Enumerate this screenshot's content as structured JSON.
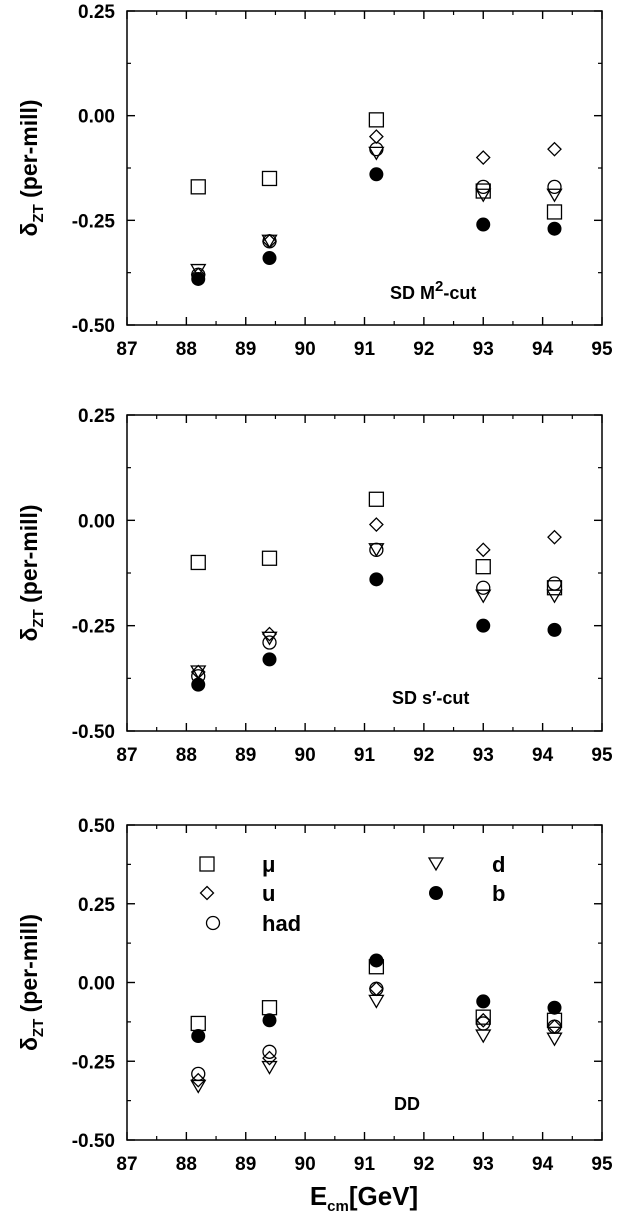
{
  "chart_data": [
    {
      "type": "scatter",
      "annotation": "SD M",
      "annotation_sup": "2",
      "annotation_tail": "-cut",
      "ylabel": "δ",
      "ylabel_sub": "ZT",
      "ylabel_tail": " (per-mill)",
      "xlim": [
        87,
        95
      ],
      "ylim": [
        -0.5,
        0.25
      ],
      "x_ticks": [
        "87",
        "88",
        "89",
        "90",
        "91",
        "92",
        "93",
        "94",
        "95"
      ],
      "y_ticks": [
        "-0.50",
        "-0.25",
        "0.00",
        "0.25"
      ],
      "x": [
        88.2,
        89.4,
        91.2,
        93.0,
        94.2
      ],
      "series": [
        {
          "marker": "square",
          "values": [
            -0.17,
            -0.15,
            -0.01,
            -0.18,
            -0.23
          ]
        },
        {
          "marker": "diamond",
          "values": [
            -0.38,
            -0.3,
            -0.05,
            -0.1,
            -0.08
          ]
        },
        {
          "marker": "circle-open",
          "values": [
            -0.38,
            -0.3,
            -0.08,
            -0.17,
            -0.17
          ]
        },
        {
          "marker": "triangle-down",
          "values": [
            -0.37,
            -0.3,
            -0.09,
            -0.19,
            -0.19
          ]
        },
        {
          "marker": "circle-filled",
          "values": [
            -0.39,
            -0.34,
            -0.14,
            -0.26,
            -0.27
          ]
        }
      ]
    },
    {
      "type": "scatter",
      "annotation": "SD s′-cut",
      "annotation_sup": "",
      "annotation_tail": "",
      "ylabel": "δ",
      "ylabel_sub": "ZT",
      "ylabel_tail": " (per-mill)",
      "xlim": [
        87,
        95
      ],
      "ylim": [
        -0.5,
        0.25
      ],
      "x_ticks": [
        "87",
        "88",
        "89",
        "90",
        "91",
        "92",
        "93",
        "94",
        "95"
      ],
      "y_ticks": [
        "-0.50",
        "-0.25",
        "0.00",
        "0.25"
      ],
      "x": [
        88.2,
        89.4,
        91.2,
        93.0,
        94.2
      ],
      "series": [
        {
          "marker": "square",
          "values": [
            -0.1,
            -0.09,
            0.05,
            -0.11,
            -0.16
          ]
        },
        {
          "marker": "diamond",
          "values": [
            -0.36,
            -0.27,
            -0.01,
            -0.07,
            -0.04
          ]
        },
        {
          "marker": "circle-open",
          "values": [
            -0.37,
            -0.29,
            -0.07,
            -0.16,
            -0.15
          ]
        },
        {
          "marker": "triangle-down",
          "values": [
            -0.36,
            -0.28,
            -0.07,
            -0.18,
            -0.18
          ]
        },
        {
          "marker": "circle-filled",
          "values": [
            -0.39,
            -0.33,
            -0.14,
            -0.25,
            -0.26
          ]
        }
      ]
    },
    {
      "type": "scatter",
      "annotation": "DD",
      "annotation_sup": "",
      "annotation_tail": "",
      "ylabel": "δ",
      "ylabel_sub": "ZT",
      "ylabel_tail": " (per-mill)",
      "xlabel": "E",
      "xlabel_sub": "cm",
      "xlabel_tail": "[GeV]",
      "xlim": [
        87,
        95
      ],
      "ylim": [
        -0.5,
        0.5
      ],
      "x_ticks": [
        "87",
        "88",
        "89",
        "90",
        "91",
        "92",
        "93",
        "94",
        "95"
      ],
      "y_ticks": [
        "-0.50",
        "-0.25",
        "0.00",
        "0.25",
        "0.50"
      ],
      "legend": [
        {
          "marker": "square",
          "label": "μ"
        },
        {
          "marker": "diamond",
          "label": "u"
        },
        {
          "marker": "circle-open",
          "label": "had"
        },
        {
          "marker": "triangle-down",
          "label": "d"
        },
        {
          "marker": "circle-filled",
          "label": "b"
        }
      ],
      "x": [
        88.2,
        89.4,
        91.2,
        93.0,
        94.2
      ],
      "series": [
        {
          "name": "μ",
          "marker": "square",
          "values": [
            -0.13,
            -0.08,
            0.05,
            -0.11,
            -0.12
          ]
        },
        {
          "name": "u",
          "marker": "diamond",
          "values": [
            -0.31,
            -0.24,
            -0.02,
            -0.12,
            -0.14
          ]
        },
        {
          "name": "had",
          "marker": "circle-open",
          "values": [
            -0.29,
            -0.22,
            -0.02,
            -0.13,
            -0.14
          ]
        },
        {
          "name": "d",
          "marker": "triangle-down",
          "values": [
            -0.33,
            -0.27,
            -0.06,
            -0.17,
            -0.18
          ]
        },
        {
          "name": "b",
          "marker": "circle-filled",
          "values": [
            -0.17,
            -0.12,
            0.07,
            -0.06,
            -0.08
          ]
        }
      ]
    }
  ]
}
